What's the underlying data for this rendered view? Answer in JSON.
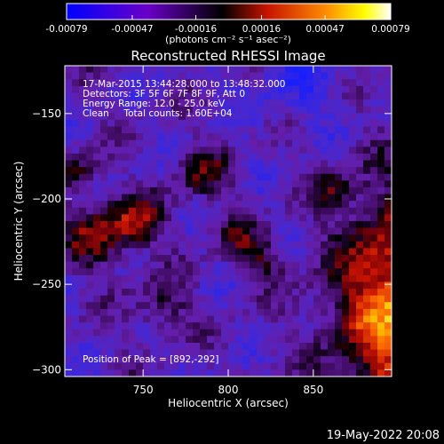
{
  "colorbar": {
    "tick_labels": [
      "-0.00079",
      "-0.00047",
      "-0.00016",
      "0.00016",
      "0.00047",
      "0.00079"
    ],
    "tick_values": [
      -0.00079,
      -0.00047,
      -0.00016,
      0.00016,
      0.00047,
      0.00079
    ],
    "range": [
      -0.00079,
      0.00079
    ],
    "units_label": "(photons cm⁻² s⁻¹ asec⁻²)",
    "colors": [
      "#0000ff",
      "#6a00c8",
      "#000000",
      "#c81400",
      "#ff8c00",
      "#ffff00",
      "#ffffff"
    ]
  },
  "chart_data": {
    "type": "heatmap",
    "title": "Reconstructed RHESSI Image",
    "xlabel": "Heliocentric X (arcsec)",
    "ylabel": "Heliocentric Y (arcsec)",
    "xlim": [
      704,
      896
    ],
    "ylim": [
      -304,
      -122
    ],
    "x_ticks": [
      750,
      800,
      850
    ],
    "y_ticks": [
      -150,
      -200,
      -250,
      -300
    ],
    "annotations": {
      "time_range": "17-Mar-2015 13:44:28.000 to 13:48:32.000",
      "detectors": "Detectors: 3F 5F 6F 7F 8F 9F, Att 0",
      "energy": "Energy Range: 12.0 - 25.0 keV",
      "clean": "Clean     Total counts: 1.60E+04",
      "peak": "Position of Peak = [892,-292]"
    },
    "peak": [
      892,
      -292
    ],
    "grid": false
  },
  "footer": {
    "date": "19-May-2022 20:08"
  }
}
